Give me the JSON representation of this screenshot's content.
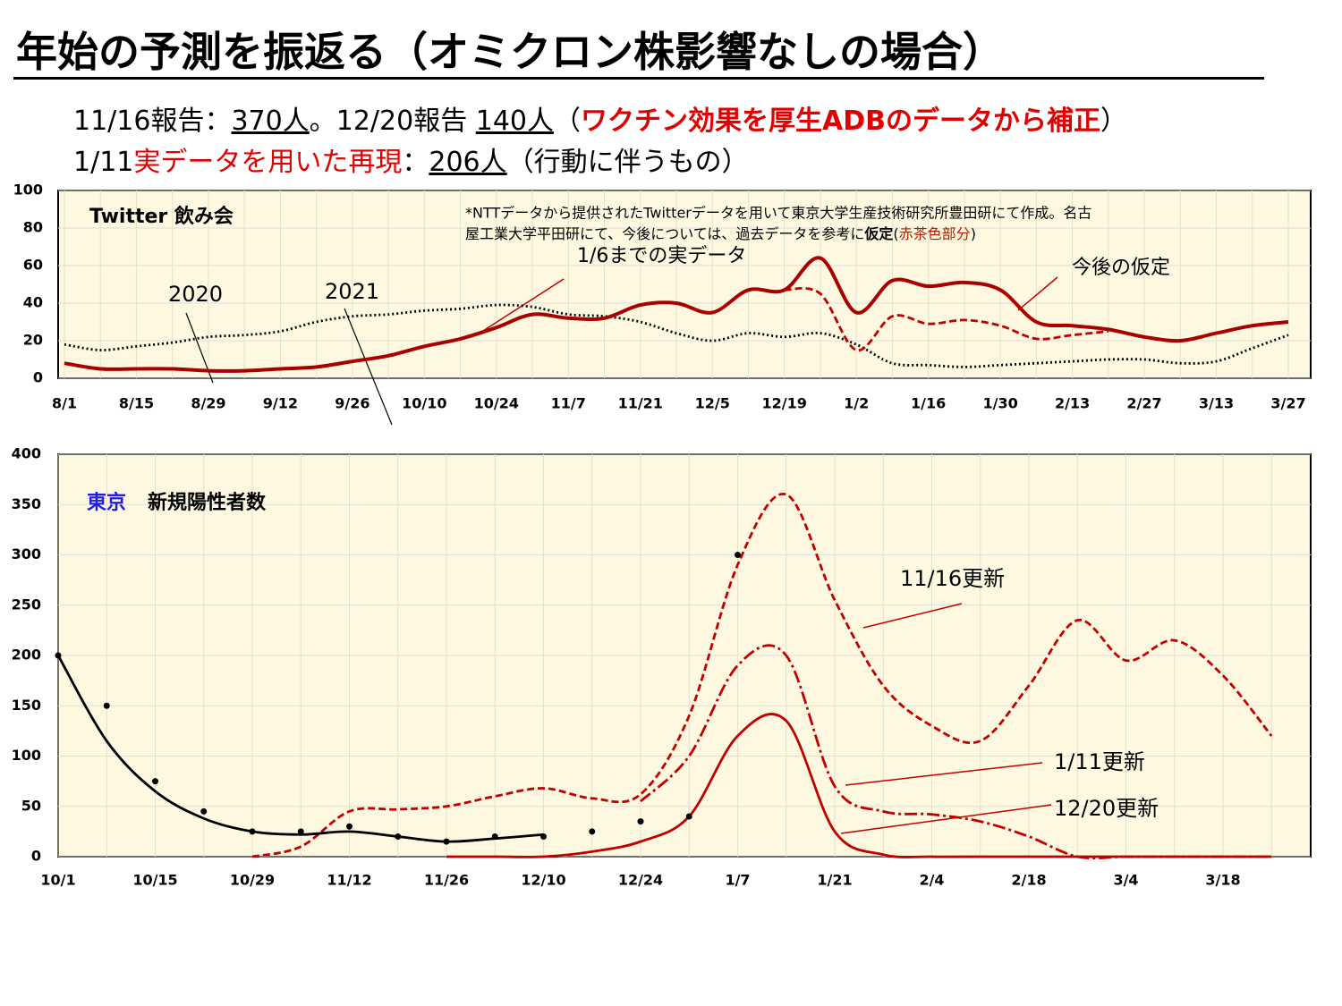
{
  "header": {
    "title": "年始の予測を振返る（オミクロン株影響なしの場合）",
    "line1": [
      "11/16報告：",
      "370人",
      "。12/20報告 ",
      "140人",
      "（",
      "ワクチン効果を厚生ADBのデータから補正",
      "）"
    ],
    "line2": [
      "1/11",
      "実データを用いた再現",
      "：",
      "206人",
      "（行動に伴うもの）"
    ]
  },
  "chart_data": [
    {
      "type": "line",
      "title": "Twitter 飲み会",
      "categories": [
        "8/1",
        null,
        "8/15",
        null,
        "8/29",
        null,
        "9/12",
        null,
        "9/26",
        null,
        "10/10",
        null,
        "10/24",
        null,
        "11/7",
        null,
        "11/21",
        null,
        "12/5",
        null,
        "12/19",
        null,
        "1/2",
        null,
        "1/16",
        null,
        "1/30",
        null,
        "2/13",
        null,
        "2/27",
        null,
        "3/13",
        null,
        "3/27"
      ],
      "ylim": [
        0,
        100
      ],
      "yticks": [
        0,
        20,
        40,
        60,
        80,
        100
      ],
      "series": [
        {
          "name": "2020",
          "color": "#000000",
          "style": "dotted",
          "values": [
            18,
            15,
            17,
            19,
            22,
            23,
            25,
            30,
            33,
            34,
            36,
            37,
            39,
            38,
            34,
            33,
            30,
            24,
            20,
            24,
            22,
            24,
            18,
            8,
            7,
            6,
            7,
            8,
            9,
            10,
            10,
            8,
            9,
            16,
            23
          ]
        },
        {
          "name": "2021",
          "color": "#a80000",
          "style": "solid",
          "values": [
            8,
            5,
            5,
            5,
            4,
            4,
            5,
            6,
            9,
            12,
            17,
            21,
            27,
            34,
            32,
            32,
            39,
            40,
            35,
            47,
            47,
            64,
            35,
            52,
            49,
            51,
            47,
            30,
            28,
            26,
            22,
            20,
            24,
            28,
            30
          ]
        },
        {
          "color": "#c00000",
          "style": "dashed",
          "values": [
            null,
            null,
            null,
            null,
            null,
            null,
            null,
            null,
            null,
            null,
            null,
            null,
            null,
            null,
            null,
            null,
            null,
            null,
            null,
            null,
            47,
            45,
            15,
            33,
            29,
            31,
            28,
            21,
            23,
            25,
            null,
            null,
            null,
            null,
            null
          ]
        }
      ],
      "annotations": [
        "1/6までの実データ",
        "今後の仮定"
      ],
      "note": [
        "*NTTデータから提供されたTwitterデータを用いて東京大学生産技術研究所豊田研にて作成。名古",
        "屋工業大学平田研にて、今後については、過去データを参考に",
        "仮定",
        "(",
        "赤茶色部分",
        ")"
      ]
    },
    {
      "type": "line",
      "region": "東京",
      "title": "新規陽性者数",
      "categories": [
        "10/1",
        null,
        "10/15",
        null,
        "10/29",
        null,
        "11/12",
        null,
        "11/26",
        null,
        "12/10",
        null,
        "12/24",
        null,
        "1/7",
        null,
        "1/21",
        null,
        "2/4",
        null,
        "2/18",
        null,
        "3/4",
        null,
        "3/18",
        null
      ],
      "ylim": [
        0,
        400
      ],
      "yticks": [
        0,
        50,
        100,
        150,
        200,
        250,
        300,
        350,
        400
      ],
      "series": [
        {
          "name": "11/16更新",
          "color": "#c00000",
          "style": "dashed",
          "values": [
            null,
            null,
            null,
            null,
            0,
            10,
            45,
            47,
            50,
            60,
            68,
            58,
            62,
            140,
            290,
            360,
            255,
            170,
            130,
            115,
            170,
            235,
            195,
            215,
            180,
            120
          ]
        },
        {
          "name": "1/11更新",
          "color": "#c00000",
          "style": "dashdot",
          "values": [
            null,
            null,
            null,
            null,
            null,
            null,
            null,
            null,
            null,
            null,
            null,
            null,
            55,
            100,
            190,
            200,
            70,
            45,
            42,
            35,
            20,
            0,
            0,
            0,
            0,
            0
          ]
        },
        {
          "name": "12/20更新",
          "color": "#c00000",
          "style": "solid",
          "values": [
            null,
            null,
            null,
            null,
            null,
            null,
            null,
            null,
            0,
            0,
            0,
            5,
            15,
            40,
            120,
            135,
            25,
            2,
            0,
            0,
            0,
            0,
            0,
            0,
            0,
            0
          ]
        },
        {
          "type": "scatter",
          "color": "#000000",
          "values": [
            200,
            150,
            75,
            45,
            25,
            25,
            30,
            20,
            15,
            20,
            20,
            25,
            35,
            40,
            300,
            null,
            null,
            null,
            null,
            null,
            null,
            null,
            null,
            null,
            null,
            null
          ]
        },
        {
          "color": "#000000",
          "style": "solid",
          "values": [
            200,
            115,
            65,
            38,
            25,
            22,
            25,
            20,
            15,
            18,
            22,
            null,
            null,
            null,
            null,
            null,
            null,
            null,
            null,
            null,
            null,
            null,
            null,
            null,
            null,
            null
          ]
        }
      ]
    }
  ]
}
